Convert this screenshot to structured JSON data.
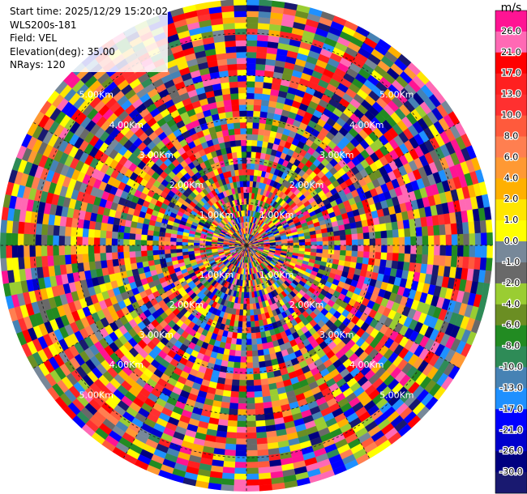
{
  "info": {
    "start_time": "Start time: 2025/12/29 15:20:02",
    "station": "WLS200s-181",
    "field": "Field: VEL",
    "elevation": "Elevation(deg): 35.00",
    "nrays": "NRays: 120"
  },
  "chart_data": {
    "type": "heatmap",
    "projection": "polar-ppi",
    "rays": 120,
    "range_unit": "km",
    "ring_label_ranges": [
      1.0,
      2.0,
      3.0,
      4.0,
      5.0
    ],
    "ring_labels": [
      "1.00Km",
      "2.00Km",
      "3.00Km",
      "4.00Km",
      "5.00Km"
    ],
    "colorbar": {
      "unit": "m/s",
      "ticks": [
        "26.0",
        "21.0",
        "17.0",
        "13.0",
        "10.0",
        "8.0",
        "6.0",
        "4.0",
        "2.0",
        "1.0",
        "0.0",
        "-1.0",
        "-2.0",
        "-4.0",
        "-6.0",
        "-8.0",
        "-10.0",
        "-13.0",
        "-17.0",
        "-21.0",
        "-26.0",
        "-30.0"
      ],
      "colors": [
        "#ff1493",
        "#ff69b4",
        "#ff0000",
        "#ff2020",
        "#ff3030",
        "#ff5a3c",
        "#ff7f50",
        "#ff9933",
        "#ffb000",
        "#ffe600",
        "#ffff00",
        "#778899",
        "#696969",
        "#9acd32",
        "#6b8e23",
        "#228b22",
        "#2e8b57",
        "#4682b4",
        "#1e90ff",
        "#0000ff",
        "#0000cd",
        "#000080",
        "#191970"
      ]
    }
  }
}
